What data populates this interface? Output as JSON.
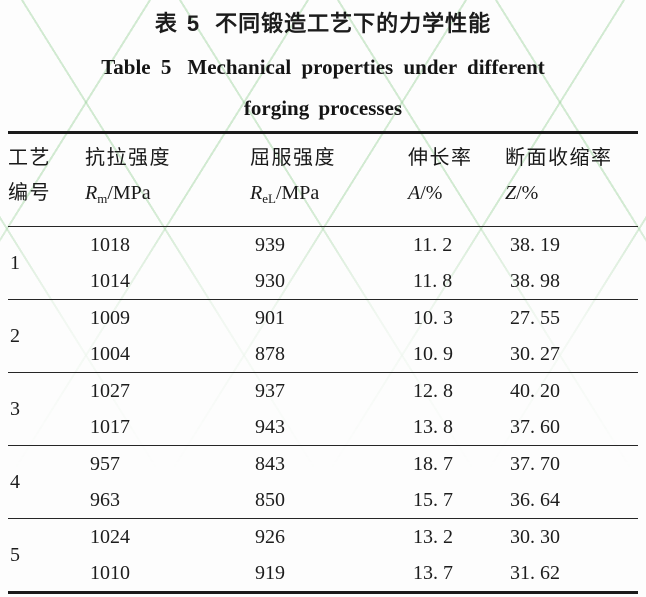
{
  "colors": {
    "background": "#fdfdfd",
    "text": "#1c1c1c",
    "rule": "#1b1b1b",
    "watermark_green": "#94ce94"
  },
  "caption": {
    "zh_label": "表 5",
    "zh_text": "不同锻造工艺下的力学性能",
    "en_label": "Table 5",
    "en_line1": "Mechanical properties under different",
    "en_line2": "forging processes"
  },
  "table": {
    "headers": [
      {
        "line1": "工艺",
        "line2": "编号",
        "symbol": "",
        "sub": "",
        "unit": ""
      },
      {
        "line1": "抗拉强度",
        "line2": "",
        "symbol": "R",
        "sub": "m",
        "unit": "/MPa"
      },
      {
        "line1": "屈服强度",
        "line2": "",
        "symbol": "R",
        "sub": "eL",
        "unit": "/MPa"
      },
      {
        "line1": "伸长率",
        "line2": "",
        "symbol": "A",
        "sub": "",
        "unit": "/%"
      },
      {
        "line1": "断面收缩率",
        "line2": "",
        "symbol": "Z",
        "sub": "",
        "unit": "/%"
      }
    ],
    "groups": [
      {
        "process": "1",
        "rows": [
          [
            "1018",
            "939",
            "11. 2",
            "38. 19"
          ],
          [
            "1014",
            "930",
            "11. 8",
            "38. 98"
          ]
        ]
      },
      {
        "process": "2",
        "rows": [
          [
            "1009",
            "901",
            "10. 3",
            "27. 55"
          ],
          [
            "1004",
            "878",
            "10. 9",
            "30. 27"
          ]
        ]
      },
      {
        "process": "3",
        "rows": [
          [
            "1027",
            "937",
            "12. 8",
            "40. 20"
          ],
          [
            "1017",
            "943",
            "13. 8",
            "37. 60"
          ]
        ]
      },
      {
        "process": "4",
        "rows": [
          [
            "957",
            "843",
            "18. 7",
            "37. 70"
          ],
          [
            "963",
            "850",
            "15. 7",
            "36. 64"
          ]
        ]
      },
      {
        "process": "5",
        "rows": [
          [
            "1024",
            "926",
            "13. 2",
            "30. 30"
          ],
          [
            "1010",
            "919",
            "13. 7",
            "31. 62"
          ]
        ]
      }
    ]
  }
}
